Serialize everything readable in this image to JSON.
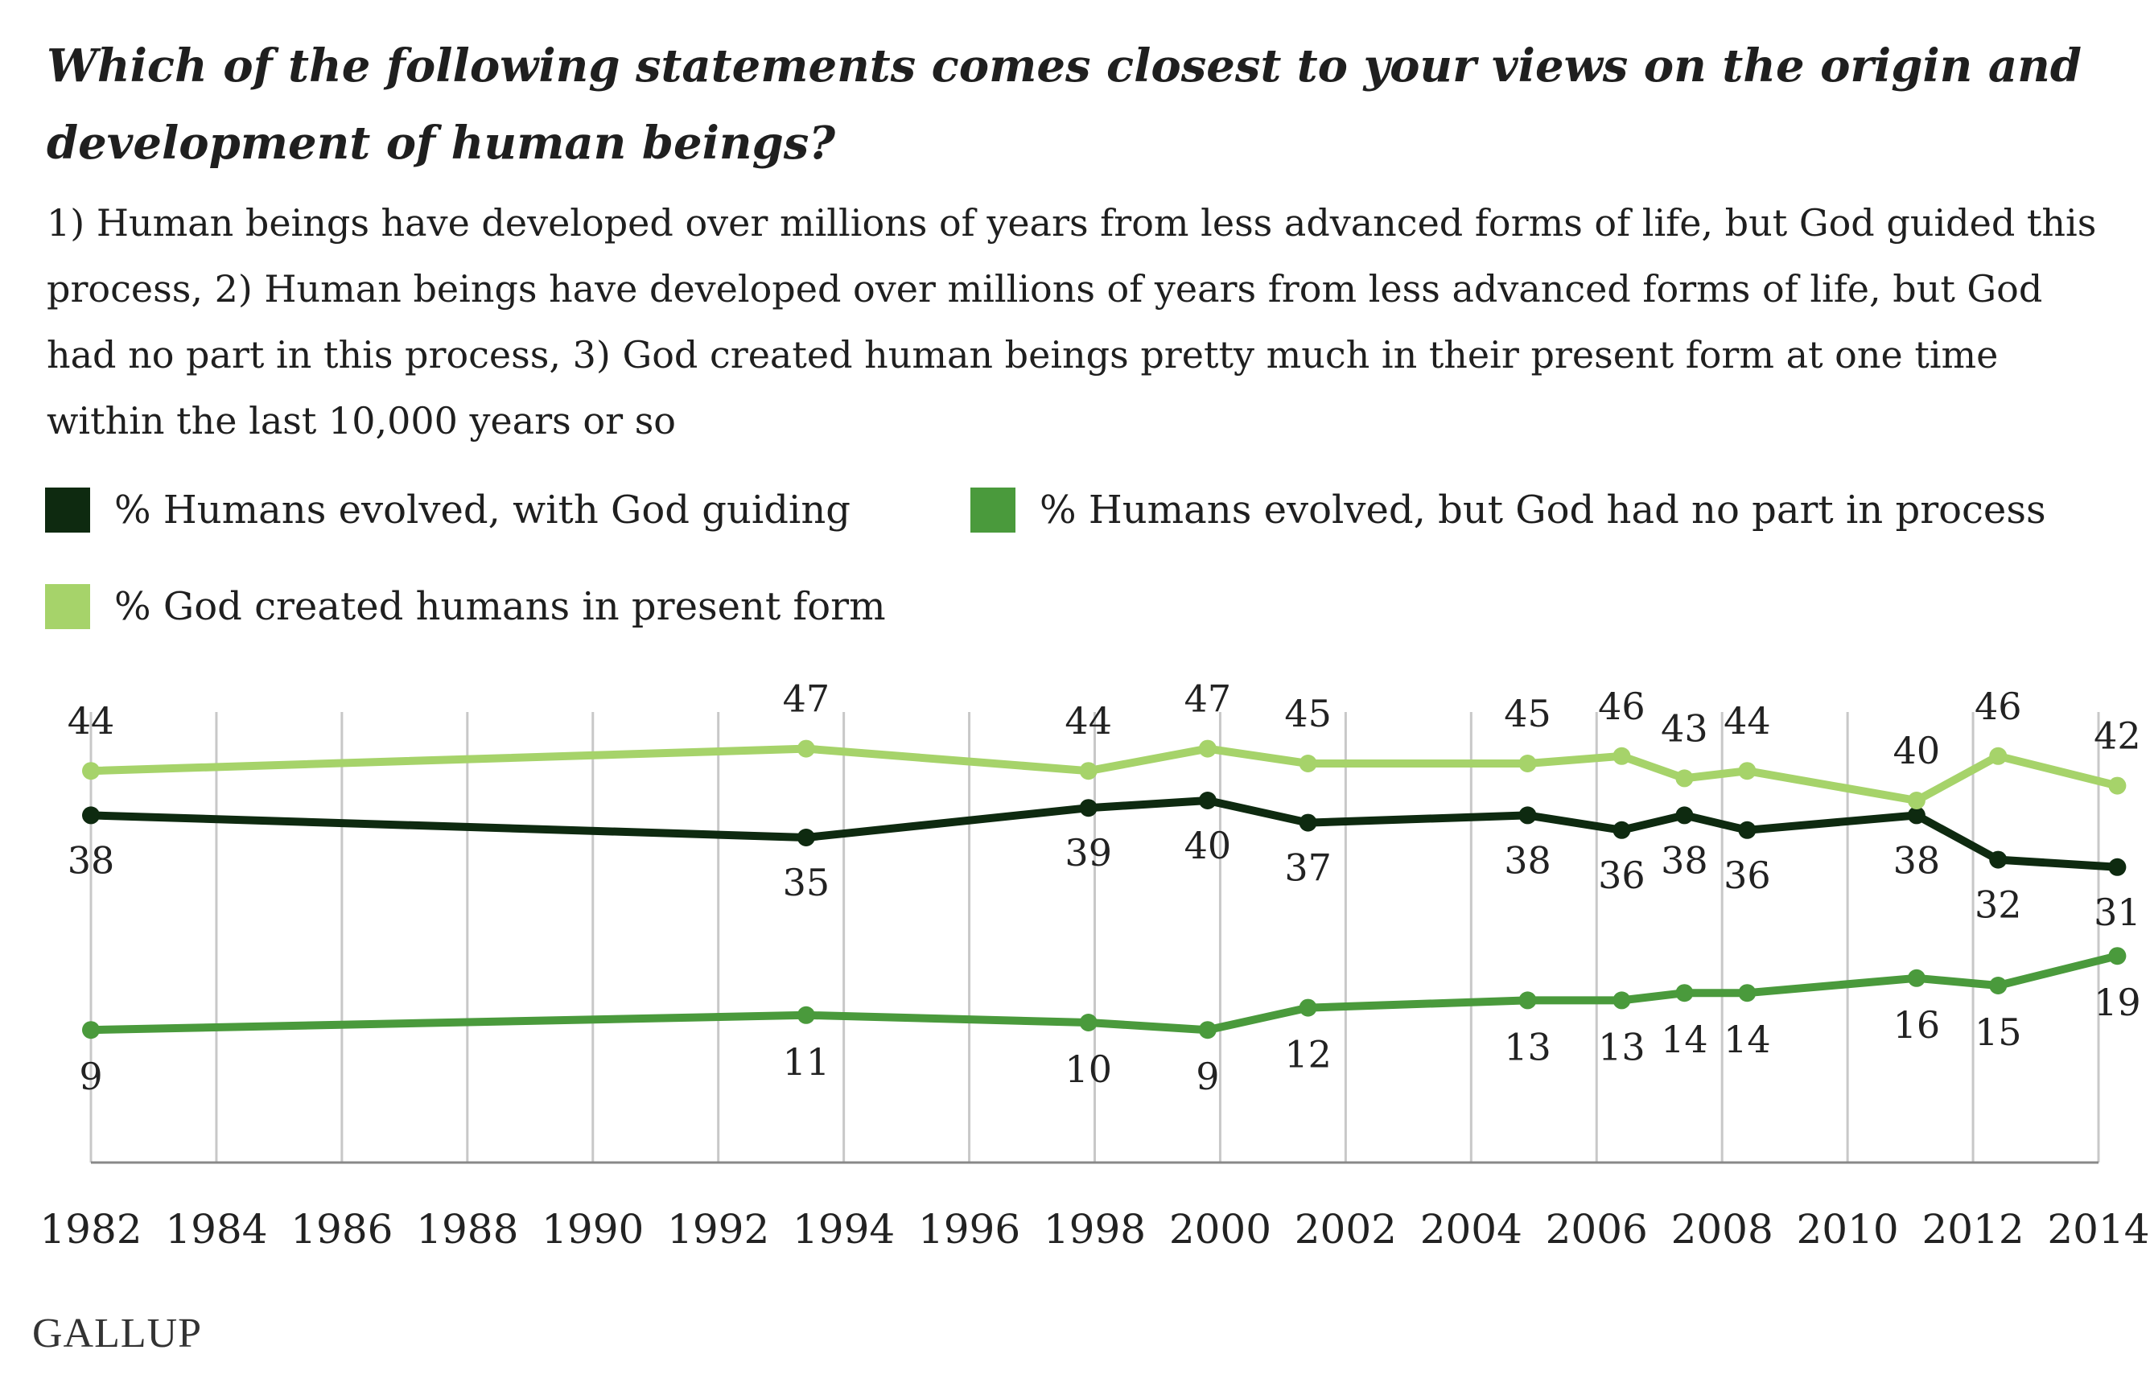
{
  "title": "Which of the following statements comes closest to your views on the origin and development of human beings?",
  "subtitle": "1) Human beings have developed over millions of years from less advanced forms of life, but God guided this process, 2) Human beings have developed over millions of years from less advanced forms of life, but God had no part in this process, 3) God created human beings pretty much in their present form at one time within the last 10,000 years or so",
  "legend": {
    "item1": "% Humans evolved, with God guiding",
    "item2": "% Humans evolved, but God had no part in process",
    "item3": "% God created humans in present form"
  },
  "logo": "GALLUP",
  "colors": {
    "god_guiding": "#0e2a10",
    "no_god": "#4a9a3c",
    "creationist": "#a6d36a",
    "grid": "#c8c8c8"
  },
  "chart_data": {
    "type": "line",
    "xlim": [
      1982,
      2014
    ],
    "x_ticks": [
      "1982",
      "1984",
      "1986",
      "1988",
      "1990",
      "1992",
      "1994",
      "1996",
      "1998",
      "2000",
      "2002",
      "2004",
      "2006",
      "2008",
      "2010",
      "2012",
      "2014"
    ],
    "x": [
      1982,
      1993.4,
      1997.9,
      1999.8,
      2001.4,
      2004.9,
      2006.4,
      2007.4,
      2008.4,
      2011.1,
      2012.4,
      2014.3
    ],
    "series": [
      {
        "name": "% Humans evolved, with God guiding",
        "values": [
          38,
          35,
          39,
          40,
          37,
          38,
          36,
          38,
          36,
          38,
          32,
          31
        ]
      },
      {
        "name": "% Humans evolved, but God had no part in process",
        "values": [
          9,
          11,
          10,
          9,
          12,
          13,
          13,
          14,
          14,
          16,
          15,
          19
        ]
      },
      {
        "name": "% God created humans in present form",
        "values": [
          44,
          47,
          44,
          47,
          45,
          45,
          46,
          43,
          44,
          40,
          46,
          42
        ]
      }
    ]
  }
}
